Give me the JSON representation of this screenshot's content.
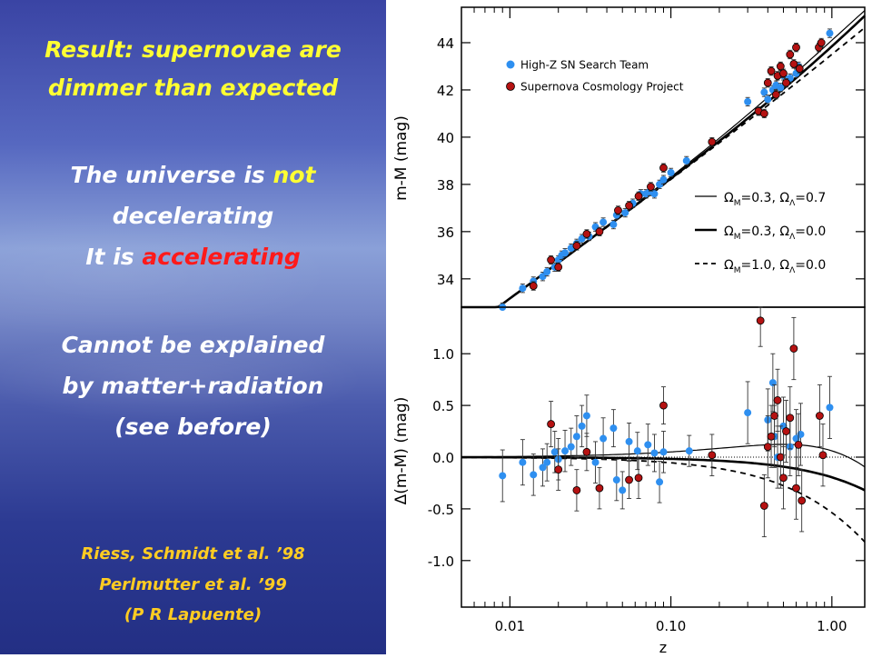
{
  "left": {
    "result_label": "Result:",
    "result_text": "supernovae are",
    "result_text2": "dimmer than expected",
    "line1a": "The universe is",
    "line1b": "not",
    "line2": "decelerating",
    "line3a": "It is",
    "line3b": "accelerating",
    "line4": "Cannot be explained",
    "line5": "by matter+radiation",
    "line6": "(see before)",
    "ref1": "Riess, Schmidt et al. ’98",
    "ref2": "Perlmutter et al. ’99",
    "ref3": "(P R Lapuente)"
  },
  "colors": {
    "high_z": "#2e8ff0",
    "scp": "#b51212",
    "title_yellow": "#ffff33",
    "red_text": "#ff1a1a"
  },
  "chart_data": [
    {
      "type": "scatter",
      "xlabel": "z",
      "ylabel": "m-M (mag)",
      "xscale": "log",
      "xlim": [
        0.005,
        1.6
      ],
      "ylim": [
        32.8,
        45.5
      ],
      "yticks": [
        34,
        36,
        38,
        40,
        42,
        44
      ],
      "legend_placement": "top-left",
      "legend": [
        "High-Z SN Search Team",
        "Supernova Cosmology Project"
      ],
      "model_legend": [
        {
          "style": "solid-thin",
          "om": "0.3",
          "ol": "0.7"
        },
        {
          "style": "solid-thick",
          "om": "0.3",
          "ol": "0.0"
        },
        {
          "style": "dashed",
          "om": "1.0",
          "ol": "0.0"
        }
      ],
      "series": [
        {
          "name": "High-Z SN Search Team",
          "points": [
            [
              0.009,
              32.8
            ],
            [
              0.012,
              33.6
            ],
            [
              0.014,
              33.9
            ],
            [
              0.016,
              34.1
            ],
            [
              0.017,
              34.3
            ],
            [
              0.019,
              34.5
            ],
            [
              0.02,
              34.8
            ],
            [
              0.021,
              35.0
            ],
            [
              0.022,
              35.1
            ],
            [
              0.024,
              35.3
            ],
            [
              0.026,
              35.5
            ],
            [
              0.028,
              35.7
            ],
            [
              0.031,
              35.8
            ],
            [
              0.034,
              36.2
            ],
            [
              0.038,
              36.4
            ],
            [
              0.044,
              36.3
            ],
            [
              0.046,
              36.7
            ],
            [
              0.052,
              36.8
            ],
            [
              0.058,
              37.2
            ],
            [
              0.065,
              37.6
            ],
            [
              0.07,
              37.6
            ],
            [
              0.074,
              37.7
            ],
            [
              0.079,
              37.6
            ],
            [
              0.085,
              38.0
            ],
            [
              0.09,
              38.2
            ],
            [
              0.1,
              38.5
            ],
            [
              0.125,
              39.0
            ],
            [
              0.3,
              41.5
            ],
            [
              0.38,
              41.9
            ],
            [
              0.4,
              41.6
            ],
            [
              0.43,
              42.0
            ],
            [
              0.45,
              42.2
            ],
            [
              0.48,
              42.1
            ],
            [
              0.5,
              42.6
            ],
            [
              0.55,
              42.5
            ],
            [
              0.6,
              42.7
            ],
            [
              0.62,
              43.0
            ],
            [
              0.97,
              44.4
            ]
          ]
        },
        {
          "name": "Supernova Cosmology Project",
          "points": [
            [
              0.014,
              33.7
            ],
            [
              0.018,
              34.8
            ],
            [
              0.02,
              34.5
            ],
            [
              0.026,
              35.4
            ],
            [
              0.03,
              35.9
            ],
            [
              0.036,
              36.0
            ],
            [
              0.047,
              36.9
            ],
            [
              0.055,
              37.1
            ],
            [
              0.063,
              37.5
            ],
            [
              0.075,
              37.9
            ],
            [
              0.09,
              38.7
            ],
            [
              0.18,
              39.8
            ],
            [
              0.35,
              41.1
            ],
            [
              0.38,
              41.0
            ],
            [
              0.4,
              42.3
            ],
            [
              0.42,
              42.8
            ],
            [
              0.45,
              41.8
            ],
            [
              0.46,
              42.6
            ],
            [
              0.48,
              43.0
            ],
            [
              0.5,
              42.7
            ],
            [
              0.52,
              42.3
            ],
            [
              0.55,
              43.5
            ],
            [
              0.58,
              43.1
            ],
            [
              0.6,
              43.8
            ],
            [
              0.63,
              42.9
            ],
            [
              0.83,
              43.8
            ],
            [
              0.86,
              44.0
            ]
          ]
        }
      ]
    },
    {
      "type": "scatter",
      "xlabel": "z",
      "ylabel": "Δ(m-M) (mag)",
      "xscale": "log",
      "xlim": [
        0.005,
        1.6
      ],
      "ylim": [
        -1.45,
        1.45
      ],
      "yticks": [
        -1.0,
        -0.5,
        0.0,
        0.5,
        1.0
      ],
      "xticks": [
        0.01,
        0.1,
        1.0
      ],
      "xticklabels": [
        "0.01",
        "0.10",
        "1.00"
      ],
      "series": [
        {
          "name": "High-Z SN Search Team",
          "points": [
            [
              0.009,
              -0.18,
              0.25
            ],
            [
              0.012,
              -0.05,
              0.22
            ],
            [
              0.014,
              -0.17,
              0.2
            ],
            [
              0.016,
              -0.1,
              0.18
            ],
            [
              0.017,
              -0.05,
              0.18
            ],
            [
              0.019,
              0.05,
              0.2
            ],
            [
              0.02,
              -0.02,
              0.2
            ],
            [
              0.022,
              0.06,
              0.2
            ],
            [
              0.024,
              0.1,
              0.18
            ],
            [
              0.026,
              0.2,
              0.2
            ],
            [
              0.028,
              0.3,
              0.2
            ],
            [
              0.03,
              0.4,
              0.2
            ],
            [
              0.034,
              -0.05,
              0.2
            ],
            [
              0.038,
              0.18,
              0.2
            ],
            [
              0.044,
              0.28,
              0.18
            ],
            [
              0.046,
              -0.22,
              0.2
            ],
            [
              0.05,
              -0.32,
              0.18
            ],
            [
              0.055,
              0.15,
              0.18
            ],
            [
              0.062,
              0.06,
              0.18
            ],
            [
              0.072,
              0.12,
              0.2
            ],
            [
              0.079,
              0.04,
              0.18
            ],
            [
              0.085,
              -0.24,
              0.2
            ],
            [
              0.09,
              0.05,
              0.2
            ],
            [
              0.13,
              0.06,
              0.15
            ],
            [
              0.3,
              0.43,
              0.3
            ],
            [
              0.4,
              0.36,
              0.3
            ],
            [
              0.43,
              0.72,
              0.28
            ],
            [
              0.44,
              0.2,
              0.3
            ],
            [
              0.46,
              0.0,
              0.3
            ],
            [
              0.5,
              0.3,
              0.28
            ],
            [
              0.55,
              0.1,
              0.28
            ],
            [
              0.6,
              0.18,
              0.28
            ],
            [
              0.64,
              0.22,
              0.3
            ],
            [
              0.97,
              0.48,
              0.3
            ]
          ]
        },
        {
          "name": "Supernova Cosmology Project",
          "points": [
            [
              0.018,
              0.32,
              0.22
            ],
            [
              0.02,
              -0.12,
              0.2
            ],
            [
              0.026,
              -0.32,
              0.2
            ],
            [
              0.03,
              0.05,
              0.18
            ],
            [
              0.036,
              -0.3,
              0.2
            ],
            [
              0.055,
              -0.22,
              0.18
            ],
            [
              0.063,
              -0.2,
              0.2
            ],
            [
              0.09,
              0.5,
              0.18
            ],
            [
              0.18,
              0.02,
              0.2
            ],
            [
              0.36,
              1.32,
              0.25
            ],
            [
              0.38,
              -0.47,
              0.3
            ],
            [
              0.4,
              0.1,
              0.3
            ],
            [
              0.42,
              0.2,
              0.3
            ],
            [
              0.44,
              0.4,
              0.3
            ],
            [
              0.46,
              0.55,
              0.3
            ],
            [
              0.48,
              0.0,
              0.3
            ],
            [
              0.5,
              -0.2,
              0.3
            ],
            [
              0.52,
              0.25,
              0.3
            ],
            [
              0.55,
              0.38,
              0.3
            ],
            [
              0.58,
              1.05,
              0.3
            ],
            [
              0.6,
              -0.3,
              0.3
            ],
            [
              0.62,
              0.12,
              0.3
            ],
            [
              0.65,
              -0.42,
              0.3
            ],
            [
              0.84,
              0.4,
              0.3
            ],
            [
              0.88,
              0.02,
              0.3
            ]
          ]
        }
      ]
    }
  ]
}
